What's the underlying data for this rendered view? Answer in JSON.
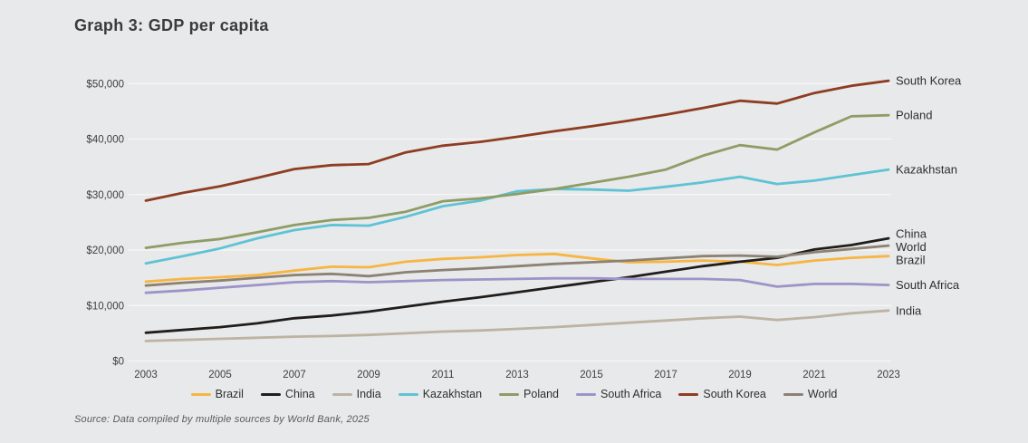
{
  "title": "Graph 3: GDP per capita",
  "source": "Source: Data compiled by multiple sources by World Bank, 2025",
  "colors": {
    "background": "#E8E9EA",
    "gridline": "#F7F7F8",
    "title_text": "#3B3B3B",
    "axis_text": "#3E3E3E",
    "label_text": "#2F2F2F"
  },
  "chart_data": {
    "type": "line",
    "title": "Graph 3: GDP per capita",
    "xlabel": "",
    "ylabel": "",
    "x": [
      2003,
      2004,
      2005,
      2006,
      2007,
      2008,
      2009,
      2010,
      2011,
      2012,
      2013,
      2014,
      2015,
      2016,
      2017,
      2018,
      2019,
      2020,
      2021,
      2022,
      2023
    ],
    "x_tick_labels": [
      "2003",
      "2005",
      "2007",
      "2009",
      "2011",
      "2013",
      "2015",
      "2017",
      "2019",
      "2021",
      "2023"
    ],
    "y_ticks": [
      0,
      10000,
      20000,
      30000,
      40000,
      50000
    ],
    "y_tick_labels": [
      "$0",
      "$10,000",
      "$20,000",
      "$30,000",
      "$40,000",
      "$50,000"
    ],
    "ylim": [
      0,
      50000
    ],
    "grid": "horizontal",
    "legend_position": "bottom",
    "series": [
      {
        "name": "Brazil",
        "color": "#F7B541",
        "values": [
          14300,
          14800,
          15100,
          15500,
          16300,
          17000,
          16900,
          17900,
          18400,
          18700,
          19100,
          19300,
          18500,
          17800,
          17900,
          18100,
          17900,
          17300,
          18100,
          18600,
          18900
        ]
      },
      {
        "name": "China",
        "color": "#201D1B",
        "values": [
          5100,
          5600,
          6100,
          6800,
          7700,
          8200,
          8900,
          9800,
          10700,
          11500,
          12400,
          13300,
          14200,
          15100,
          16100,
          17100,
          17900,
          18600,
          20100,
          20900,
          22100
        ]
      },
      {
        "name": "India",
        "color": "#BDB3A3",
        "values": [
          3600,
          3800,
          4000,
          4200,
          4400,
          4500,
          4700,
          5000,
          5300,
          5500,
          5800,
          6100,
          6500,
          6900,
          7300,
          7700,
          8000,
          7400,
          7900,
          8600,
          9100
        ]
      },
      {
        "name": "Kazakhstan",
        "color": "#5EC3D5",
        "values": [
          17600,
          18900,
          20300,
          22100,
          23600,
          24500,
          24400,
          26000,
          27900,
          28900,
          30600,
          31000,
          30900,
          30700,
          31400,
          32200,
          33200,
          31900,
          32500,
          33500,
          34500
        ]
      },
      {
        "name": "Poland",
        "color": "#8E9C66",
        "values": [
          20400,
          21300,
          22000,
          23200,
          24500,
          25400,
          25800,
          26900,
          28800,
          29300,
          30100,
          31000,
          32100,
          33200,
          34500,
          37000,
          38900,
          38100,
          41200,
          44100,
          44300
        ]
      },
      {
        "name": "South Africa",
        "color": "#9D93C8",
        "values": [
          12300,
          12700,
          13200,
          13700,
          14200,
          14400,
          14200,
          14400,
          14600,
          14700,
          14800,
          14900,
          14900,
          14800,
          14800,
          14800,
          14600,
          13400,
          13900,
          13900,
          13700
        ]
      },
      {
        "name": "South Korea",
        "color": "#8E3C22",
        "values": [
          28900,
          30300,
          31500,
          33000,
          34600,
          35300,
          35500,
          37600,
          38800,
          39500,
          40400,
          41400,
          42300,
          43300,
          44400,
          45600,
          46900,
          46400,
          48300,
          49600,
          50500
        ]
      },
      {
        "name": "World",
        "color": "#8C8172",
        "values": [
          13600,
          14100,
          14500,
          15000,
          15500,
          15700,
          15300,
          16000,
          16400,
          16700,
          17100,
          17500,
          17800,
          18100,
          18500,
          18900,
          19000,
          18800,
          19600,
          20200,
          20800
        ]
      }
    ],
    "end_labels": [
      "South Korea",
      "Poland",
      "Kazakhstan",
      "China",
      "World",
      "Brazil",
      "South Africa",
      "India"
    ]
  }
}
